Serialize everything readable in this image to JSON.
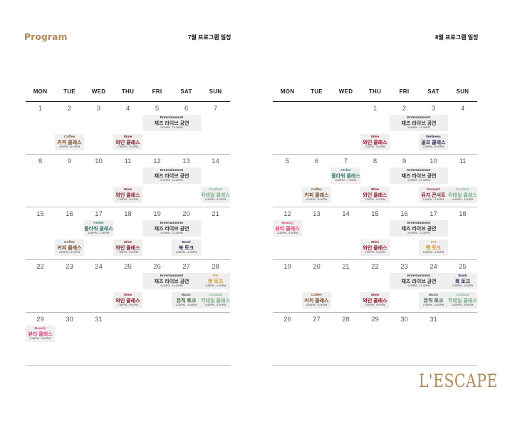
{
  "header": {
    "program": "Program",
    "july_title": "7월 프로그램 일정",
    "aug_title": "8월 프로그램 일정"
  },
  "weekdays": [
    "MON",
    "TUE",
    "WED",
    "THU",
    "FRI",
    "SAT",
    "SUN"
  ],
  "colors": {
    "program": "#b08b5c",
    "coffee": "#7a4f2a",
    "wine": "#8b1a2b",
    "atelier": "#3e7a72",
    "cocktail": "#7fb38e",
    "beauty": "#e0407e",
    "pet": "#d6962a",
    "book": "#2a2a55",
    "music": "#3b5a3b",
    "wellness": "#2a2a55",
    "concert": "#8b1a2b",
    "entertainment": "#333333",
    "cell": "#efefef"
  },
  "calendars": [
    {
      "name": "july",
      "weeks": [
        {
          "days": [
            "1",
            "2",
            "3",
            "4",
            "5",
            "6",
            "7"
          ],
          "events": [
            {
              "col": 4,
              "row": 0,
              "wide": true,
              "category": "Entertainment",
              "title": "재즈 라이브 공연",
              "time": "9:00PM - 11:30PM",
              "color": "entertainment"
            },
            {
              "col": 1,
              "row": 1,
              "category": "Coffee",
              "title": "커피 클래스",
              "time": "4:00PM - 6:00PM",
              "color": "coffee"
            },
            {
              "col": 3,
              "row": 1,
              "category": "Wine",
              "title": "와인 클래스",
              "time": "7:30PM - 9:00PM",
              "color": "wine"
            }
          ]
        },
        {
          "days": [
            "8",
            "9",
            "10",
            "11",
            "12",
            "13",
            "14"
          ],
          "events": [
            {
              "col": 4,
              "row": 0,
              "wide": true,
              "category": "Entertainment",
              "title": "재즈 라이브 공연",
              "time": "9:00PM - 11:30PM",
              "color": "entertainment"
            },
            {
              "col": 3,
              "row": 1,
              "category": "Wine",
              "title": "와인 클래스",
              "time": "7:30PM - 9:00PM",
              "color": "wine"
            },
            {
              "col": 6,
              "row": 1,
              "category": "Cocktail",
              "title": "칵테일 클래스",
              "time": "4:30PM - 6:00PM",
              "color": "cocktail"
            }
          ]
        },
        {
          "days": [
            "15",
            "16",
            "17",
            "18",
            "19",
            "20",
            "21"
          ],
          "events": [
            {
              "col": 2,
              "row": 0,
              "category": "Atelier",
              "title": "플라워 클래스",
              "time": "5:30PM - 7:30PM",
              "color": "atelier"
            },
            {
              "col": 4,
              "row": 0,
              "wide": true,
              "category": "Entertainment",
              "title": "재즈 라이브 공연",
              "time": "9:00PM - 11:30PM",
              "color": "entertainment"
            },
            {
              "col": 1,
              "row": 1,
              "category": "Coffee",
              "title": "커피 클래스",
              "time": "4:00PM - 6:00PM",
              "color": "coffee"
            },
            {
              "col": 3,
              "row": 1,
              "category": "Wine",
              "title": "와인 클래스",
              "time": "7:30PM - 9:00PM",
              "color": "wine"
            },
            {
              "col": 5,
              "row": 1,
              "category": "Book",
              "title": "북 토크",
              "time": "2:30PM - 4:30PM",
              "color": "book"
            }
          ]
        },
        {
          "days": [
            "22",
            "23",
            "24",
            "25",
            "26",
            "27",
            "28"
          ],
          "events": [
            {
              "col": 4,
              "row": 0,
              "wide": true,
              "category": "Entertainment",
              "title": "재즈 라이브 공연",
              "time": "9:00PM - 11:30PM",
              "color": "entertainment"
            },
            {
              "col": 6,
              "row": 0,
              "category": "Pet",
              "title": "펫 토크",
              "time": "2:30PM - 4:30PM",
              "color": "pet"
            },
            {
              "col": 3,
              "row": 1,
              "category": "Wine",
              "title": "와인 클래스",
              "time": "7:30PM - 9:00PM",
              "color": "wine"
            },
            {
              "col": 5,
              "row": 1,
              "category": "Music",
              "title": "뮤직 토크",
              "time": "2:30PM - 4:30PM",
              "color": "music"
            },
            {
              "col": 6,
              "row": 1,
              "category": "Cocktail",
              "title": "칵테일 클래스",
              "time": "4:30PM - 6:00PM",
              "color": "cocktail"
            }
          ]
        },
        {
          "days": [
            "29",
            "30",
            "31",
            "",
            "",
            "",
            ""
          ],
          "events": [
            {
              "col": 0,
              "row": 0,
              "category": "Beauty",
              "title": "뷰티 클래스",
              "time": "2:30PM - 4:30PM",
              "color": "beauty"
            }
          ]
        }
      ]
    },
    {
      "name": "august",
      "weeks": [
        {
          "days": [
            "",
            "",
            "",
            "1",
            "2",
            "3",
            "4"
          ],
          "events": [
            {
              "col": 4,
              "row": 0,
              "wide": true,
              "category": "Entertainment",
              "title": "재즈 라이브 공연",
              "time": "9:00PM - 11:30PM",
              "color": "entertainment"
            },
            {
              "col": 3,
              "row": 1,
              "category": "Wine",
              "title": "와인 클래스",
              "time": "7:30PM - 9:00PM",
              "color": "wine"
            },
            {
              "col": 5,
              "row": 1,
              "category": "Wellness",
              "title": "골프 클래스",
              "time": "2:30PM - 5:00PM",
              "color": "wellness"
            }
          ]
        },
        {
          "days": [
            "5",
            "6",
            "7",
            "8",
            "9",
            "10",
            "11"
          ],
          "events": [
            {
              "col": 2,
              "row": 0,
              "category": "Atelier",
              "title": "플라워 클래스",
              "time": "5:30PM - 7:30PM",
              "color": "atelier"
            },
            {
              "col": 4,
              "row": 0,
              "wide": true,
              "category": "Entertainment",
              "title": "재즈 라이브 공연",
              "time": "9:00PM - 11:30PM",
              "color": "entertainment"
            },
            {
              "col": 1,
              "row": 1,
              "category": "Coffee",
              "title": "커피 클래스",
              "time": "4:00PM - 6:00PM",
              "color": "coffee"
            },
            {
              "col": 3,
              "row": 1,
              "category": "Wine",
              "title": "와인 클래스",
              "time": "7:30PM - 9:00PM",
              "color": "wine"
            },
            {
              "col": 5,
              "row": 1,
              "category": "Concert",
              "title": "뮤지 콘서트",
              "time": "2:30PM - 4:30PM",
              "color": "concert"
            },
            {
              "col": 6,
              "row": 1,
              "category": "Cocktail",
              "title": "칵테일 클래스",
              "time": "4:30PM - 6:00PM",
              "color": "cocktail"
            }
          ]
        },
        {
          "days": [
            "12",
            "13",
            "14",
            "15",
            "16",
            "17",
            "18"
          ],
          "events": [
            {
              "col": 0,
              "row": 0,
              "category": "Beauty",
              "title": "뷰티 클래스",
              "time": "2:30PM - 4:30PM",
              "color": "beauty"
            },
            {
              "col": 4,
              "row": 0,
              "wide": true,
              "category": "Entertainment",
              "title": "재즈 라이브 공연",
              "time": "9:00PM - 11:30PM",
              "color": "entertainment"
            },
            {
              "col": 3,
              "row": 1,
              "category": "Wine",
              "title": "와인 클래스",
              "time": "7:30PM - 9:00PM",
              "color": "wine"
            },
            {
              "col": 5,
              "row": 1,
              "category": "Pet",
              "title": "펫 토크",
              "time": "2:30PM - 4:30PM",
              "color": "pet"
            }
          ]
        },
        {
          "days": [
            "19",
            "20",
            "21",
            "22",
            "23",
            "24",
            "25"
          ],
          "events": [
            {
              "col": 4,
              "row": 0,
              "wide": true,
              "category": "Entertainment",
              "title": "재즈 라이브 공연",
              "time": "9:00PM - 11:30PM",
              "color": "entertainment"
            },
            {
              "col": 6,
              "row": 0,
              "category": "Book",
              "title": "북 토크",
              "time": "2:30PM - 4:30PM",
              "color": "book"
            },
            {
              "col": 1,
              "row": 1,
              "category": "Coffee",
              "title": "커피 클래스",
              "time": "4:00PM - 6:00PM",
              "color": "coffee"
            },
            {
              "col": 3,
              "row": 1,
              "category": "Wine",
              "title": "와인 클래스",
              "time": "7:30PM - 9:00PM",
              "color": "wine"
            },
            {
              "col": 5,
              "row": 1,
              "category": "Music",
              "title": "뮤직 토크",
              "time": "2:30PM - 4:30PM",
              "color": "music"
            },
            {
              "col": 6,
              "row": 1,
              "category": "Cocktail",
              "title": "칵테일 클래스",
              "time": "4:30PM - 6:00PM",
              "color": "cocktail"
            }
          ]
        },
        {
          "days": [
            "26",
            "27",
            "28",
            "29",
            "30",
            "31",
            ""
          ],
          "events": []
        }
      ]
    }
  ],
  "logo": "L'ESCAPE"
}
